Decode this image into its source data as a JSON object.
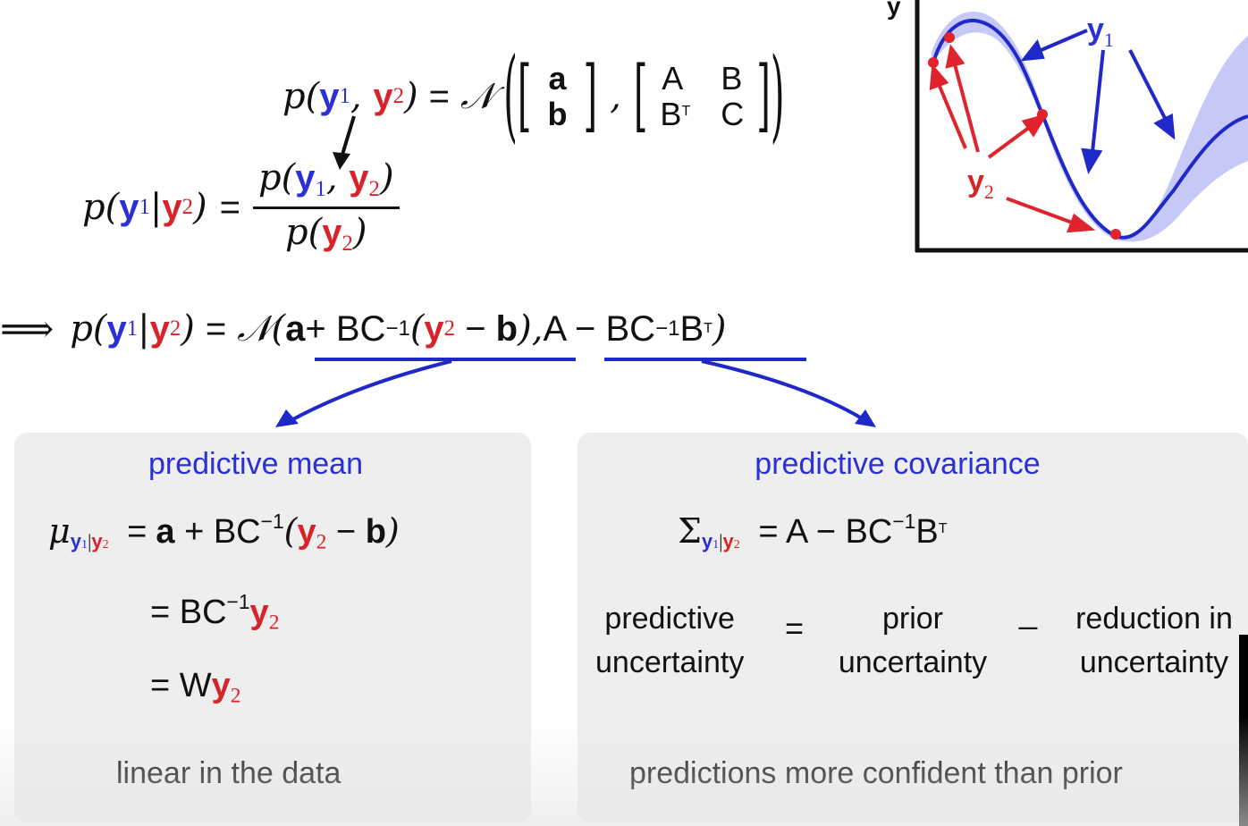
{
  "joint": {
    "lhs_p": "p",
    "y": "y",
    "sub1": "1",
    "sub2": "2",
    "normal": "𝒩",
    "mean_top": "a",
    "mean_bottom": "b",
    "cov_A": "A",
    "cov_B": "B",
    "cov_BT": "B",
    "cov_T": "T",
    "cov_C": "C"
  },
  "conditional": {
    "bar": "|",
    "equals": "="
  },
  "result": {
    "implies": "⟹",
    "mean_expr_a": "a",
    "mean_expr_mid": " + BC",
    "inv": "−1",
    "mean_expr_b": "b",
    "cov_expr_A": "A − BC",
    "cov_expr_B": "B",
    "T": "T"
  },
  "mean_panel": {
    "title": "predictive mean",
    "mu": "μ",
    "line1_a": "a",
    "line1_mid": " + BC",
    "line1_b": "b",
    "line2": "= BC",
    "line3": "= W",
    "footer": "linear in the data"
  },
  "cov_panel": {
    "title": "predictive covariance",
    "sigma": "Σ",
    "line1": "= A − BC",
    "line1_B": "B",
    "word1_top": "predictive",
    "word1_bottom": "uncertainty",
    "op1": "=",
    "word2_top": "prior",
    "word2_bottom": "uncertainty",
    "op2": "_",
    "word3_top": "reduction in",
    "word3_bottom": "uncertainty",
    "footer": "predictions more confident than prior"
  },
  "plot": {
    "axis_label": "y",
    "label_y1": "y",
    "label_y1_sub": "1",
    "label_y2": "y",
    "label_y2_sub": "2",
    "curve_color": "#1f28c8",
    "band_color": "#c6c8f7",
    "point_color": "#e0232c",
    "arrow_blue": "#1f28c8",
    "arrow_red": "#e0232c"
  },
  "colors": {
    "blue": "#2a2fd6",
    "red": "#d9232b",
    "panel_bg": "#eeeeee"
  }
}
